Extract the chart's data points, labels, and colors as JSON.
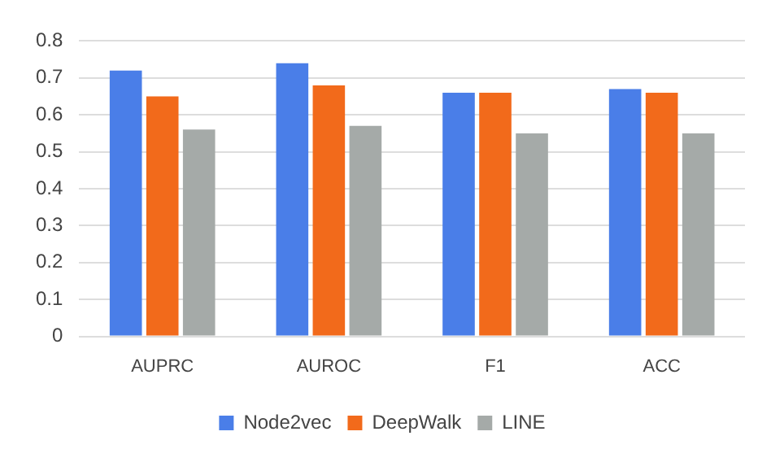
{
  "chart_data": {
    "type": "bar",
    "categories": [
      "AUPRC",
      "AUROC",
      "F1",
      "ACC"
    ],
    "series": [
      {
        "name": "Node2vec",
        "color": "#4a7ee8",
        "values": [
          0.72,
          0.74,
          0.66,
          0.67
        ]
      },
      {
        "name": "DeepWalk",
        "color": "#f26a1b",
        "values": [
          0.65,
          0.68,
          0.66,
          0.66
        ]
      },
      {
        "name": "LINE",
        "color": "#a5aaa8",
        "values": [
          0.56,
          0.57,
          0.55,
          0.55
        ]
      }
    ],
    "ylim": [
      0,
      0.8
    ],
    "yticks": [
      0,
      0.1,
      0.2,
      0.3,
      0.4,
      0.5,
      0.6,
      0.7,
      0.8
    ],
    "grid": "y",
    "legend": "bottom"
  }
}
